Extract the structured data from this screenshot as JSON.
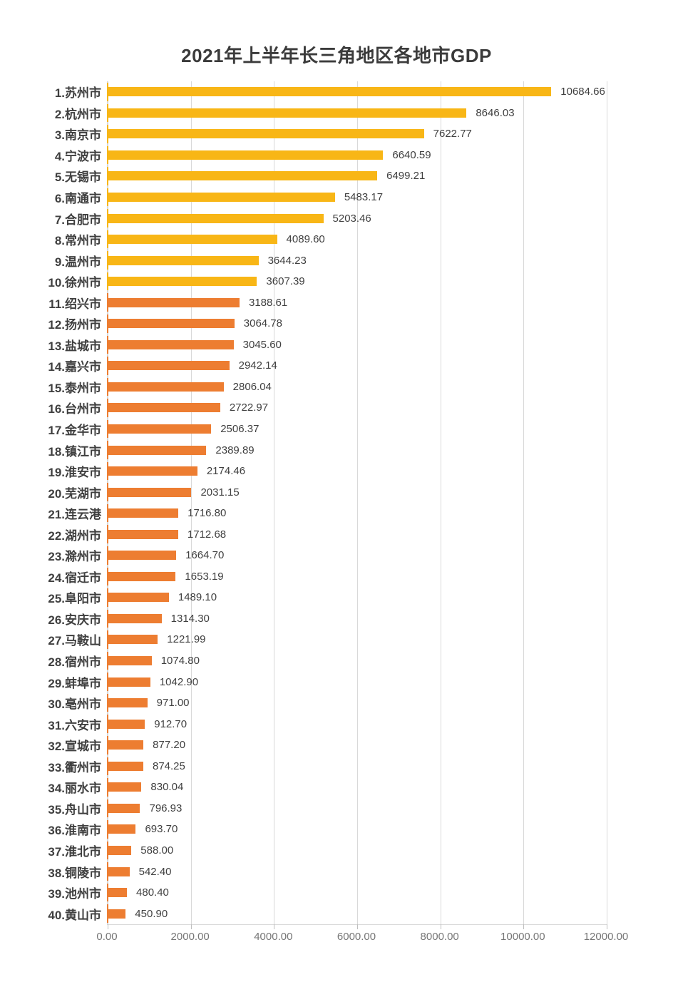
{
  "title": "2021年上半年长三角地区各地市GDP",
  "colors": {
    "gold": "#F8B616",
    "orange": "#ED7D31",
    "gridline": "#D9D9D9",
    "title_text": "#3B3B3B",
    "category_text": "#3F3F3F",
    "value_text": "#404040",
    "tick_text": "#767676",
    "background": "#FFFFFF"
  },
  "chart_data": {
    "type": "bar",
    "orientation": "horizontal",
    "title": "2021年上半年长三角地区各地市GDP",
    "xlabel": "",
    "ylabel": "",
    "xlim": [
      0,
      12000
    ],
    "grid": true,
    "legend": false,
    "x_ticks": [
      {
        "value": 0,
        "label": "0.00"
      },
      {
        "value": 2000,
        "label": "2000.00"
      },
      {
        "value": 4000,
        "label": "4000.00"
      },
      {
        "value": 6000,
        "label": "6000.00"
      },
      {
        "value": 8000,
        "label": "8000.00"
      },
      {
        "value": 10000,
        "label": "10000.00"
      },
      {
        "value": 12000,
        "label": "12000.00"
      }
    ],
    "color_groups_note": "ranks 1-10 gold, ranks 11-40 orange",
    "bars": [
      {
        "label": "1.苏州市",
        "value": 10684.66,
        "display": "10684.66",
        "group": "gold"
      },
      {
        "label": "2.杭州市",
        "value": 8646.03,
        "display": "8646.03",
        "group": "gold"
      },
      {
        "label": "3.南京市",
        "value": 7622.77,
        "display": "7622.77",
        "group": "gold"
      },
      {
        "label": "4.宁波市",
        "value": 6640.59,
        "display": "6640.59",
        "group": "gold"
      },
      {
        "label": "5.无锡市",
        "value": 6499.21,
        "display": "6499.21",
        "group": "gold"
      },
      {
        "label": "6.南通市",
        "value": 5483.17,
        "display": "5483.17",
        "group": "gold"
      },
      {
        "label": "7.合肥市",
        "value": 5203.46,
        "display": "5203.46",
        "group": "gold"
      },
      {
        "label": "8.常州市",
        "value": 4089.6,
        "display": "4089.60",
        "group": "gold"
      },
      {
        "label": "9.温州市",
        "value": 3644.23,
        "display": "3644.23",
        "group": "gold"
      },
      {
        "label": "10.徐州市",
        "value": 3607.39,
        "display": "3607.39",
        "group": "gold"
      },
      {
        "label": "11.绍兴市",
        "value": 3188.61,
        "display": "3188.61",
        "group": "orange"
      },
      {
        "label": "12.扬州市",
        "value": 3064.78,
        "display": "3064.78",
        "group": "orange"
      },
      {
        "label": "13.盐城市",
        "value": 3045.6,
        "display": "3045.60",
        "group": "orange"
      },
      {
        "label": "14.嘉兴市",
        "value": 2942.14,
        "display": "2942.14",
        "group": "orange"
      },
      {
        "label": "15.泰州市",
        "value": 2806.04,
        "display": "2806.04",
        "group": "orange"
      },
      {
        "label": "16.台州市",
        "value": 2722.97,
        "display": "2722.97",
        "group": "orange"
      },
      {
        "label": "17.金华市",
        "value": 2506.37,
        "display": "2506.37",
        "group": "orange"
      },
      {
        "label": "18.镇江市",
        "value": 2389.89,
        "display": "2389.89",
        "group": "orange"
      },
      {
        "label": "19.淮安市",
        "value": 2174.46,
        "display": "2174.46",
        "group": "orange"
      },
      {
        "label": "20.芜湖市",
        "value": 2031.15,
        "display": "2031.15",
        "group": "orange"
      },
      {
        "label": "21.连云港",
        "value": 1716.8,
        "display": "1716.80",
        "group": "orange"
      },
      {
        "label": "22.湖州市",
        "value": 1712.68,
        "display": "1712.68",
        "group": "orange"
      },
      {
        "label": "23.滁州市",
        "value": 1664.7,
        "display": "1664.70",
        "group": "orange"
      },
      {
        "label": "24.宿迁市",
        "value": 1653.19,
        "display": "1653.19",
        "group": "orange"
      },
      {
        "label": "25.阜阳市",
        "value": 1489.1,
        "display": "1489.10",
        "group": "orange"
      },
      {
        "label": "26.安庆市",
        "value": 1314.3,
        "display": "1314.30",
        "group": "orange"
      },
      {
        "label": "27.马鞍山",
        "value": 1221.99,
        "display": "1221.99",
        "group": "orange"
      },
      {
        "label": "28.宿州市",
        "value": 1074.8,
        "display": "1074.80",
        "group": "orange"
      },
      {
        "label": "29.蚌埠市",
        "value": 1042.9,
        "display": "1042.90",
        "group": "orange"
      },
      {
        "label": "30.亳州市",
        "value": 971.0,
        "display": "971.00",
        "group": "orange"
      },
      {
        "label": "31.六安市",
        "value": 912.7,
        "display": "912.70",
        "group": "orange"
      },
      {
        "label": "32.宣城市",
        "value": 877.2,
        "display": "877.20",
        "group": "orange"
      },
      {
        "label": "33.衢州市",
        "value": 874.25,
        "display": "874.25",
        "group": "orange"
      },
      {
        "label": "34.丽水市",
        "value": 830.04,
        "display": "830.04",
        "group": "orange"
      },
      {
        "label": "35.舟山市",
        "value": 796.93,
        "display": "796.93",
        "group": "orange"
      },
      {
        "label": "36.淮南市",
        "value": 693.7,
        "display": "693.70",
        "group": "orange"
      },
      {
        "label": "37.淮北市",
        "value": 588.0,
        "display": "588.00",
        "group": "orange"
      },
      {
        "label": "38.铜陵市",
        "value": 542.4,
        "display": "542.40",
        "group": "orange"
      },
      {
        "label": "39.池州市",
        "value": 480.4,
        "display": "480.40",
        "group": "orange"
      },
      {
        "label": "40.黄山市",
        "value": 450.9,
        "display": "450.90",
        "group": "orange"
      }
    ]
  }
}
